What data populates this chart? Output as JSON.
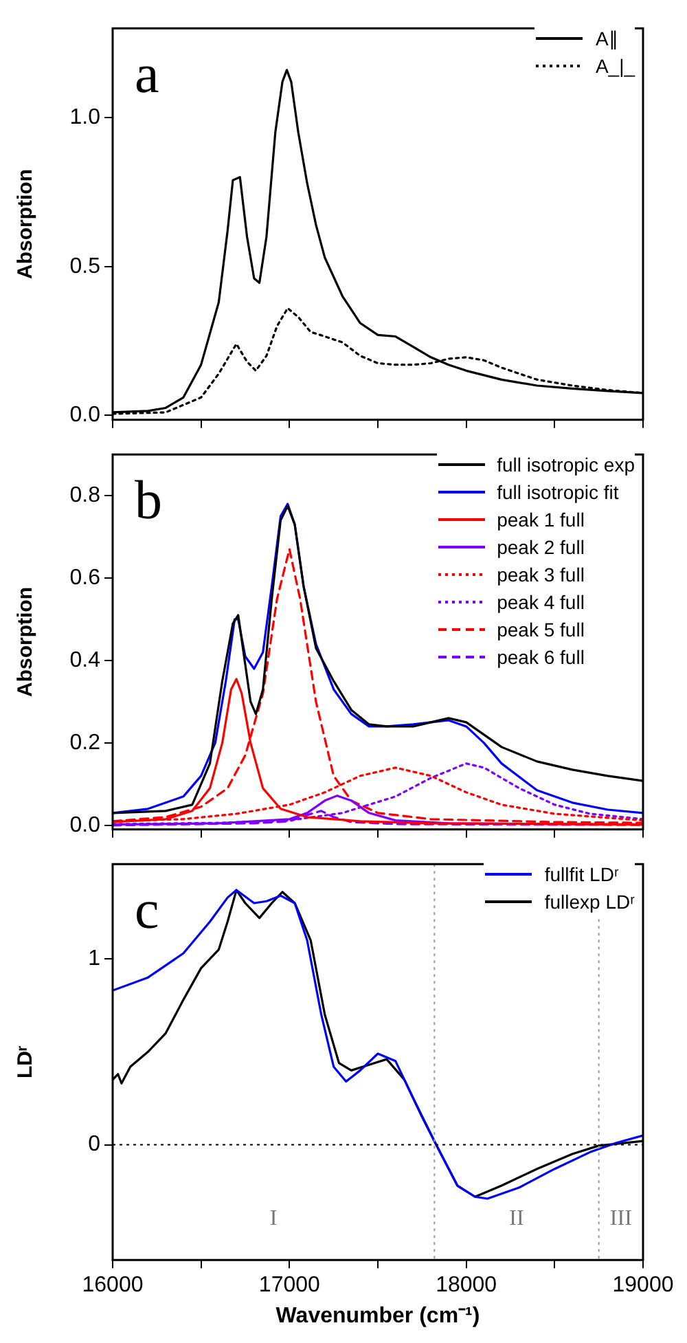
{
  "chart_data": [
    {
      "type": "line",
      "title": "a",
      "ylabel": "Absorption",
      "legend": "top right",
      "marker": "none",
      "grid": false,
      "tick_labels": "y",
      "xlim": [
        16000,
        19000
      ],
      "xticks": [
        16000,
        {
          "value": 16500,
          "label": null
        },
        17000,
        {
          "value": 17500,
          "label": null
        },
        18000,
        {
          "value": 18500,
          "label": null
        },
        19000
      ],
      "ylim": [
        -0.015,
        1.3
      ],
      "yticks": [
        {
          "value": 0,
          "label": "0.0"
        },
        {
          "value": 0.5,
          "label": "0.5"
        },
        {
          "value": 1,
          "label": "1.0"
        }
      ],
      "series": [
        {
          "name": "A∥",
          "color": "#000000",
          "line_style": "solid",
          "x": [
            16000,
            16200,
            16300,
            16400,
            16500,
            16600,
            16650,
            16680,
            16720,
            16760,
            16800,
            16830,
            16870,
            16920,
            16960,
            16985,
            17010,
            17050,
            17100,
            17150,
            17200,
            17300,
            17400,
            17500,
            17600,
            17700,
            17800,
            17900,
            18000,
            18200,
            18400,
            18600,
            18800,
            19000
          ],
          "values": [
            0.01,
            0.015,
            0.025,
            0.06,
            0.17,
            0.38,
            0.62,
            0.79,
            0.8,
            0.6,
            0.46,
            0.445,
            0.6,
            0.95,
            1.12,
            1.16,
            1.12,
            0.95,
            0.78,
            0.64,
            0.53,
            0.4,
            0.31,
            0.27,
            0.265,
            0.23,
            0.195,
            0.17,
            0.15,
            0.12,
            0.1,
            0.09,
            0.082,
            0.075
          ]
        },
        {
          "name": "A_|_",
          "color": "#000000",
          "line_style": "dotted",
          "x": [
            16000,
            16300,
            16500,
            16600,
            16700,
            16760,
            16810,
            16870,
            16930,
            16990,
            17050,
            17120,
            17200,
            17300,
            17400,
            17500,
            17600,
            17700,
            17800,
            17900,
            18000,
            18100,
            18200,
            18400,
            18600,
            18800,
            19000
          ],
          "values": [
            0.005,
            0.01,
            0.06,
            0.14,
            0.24,
            0.18,
            0.15,
            0.2,
            0.3,
            0.36,
            0.33,
            0.28,
            0.265,
            0.245,
            0.2,
            0.175,
            0.17,
            0.17,
            0.175,
            0.19,
            0.195,
            0.185,
            0.16,
            0.12,
            0.1,
            0.085,
            0.075
          ]
        }
      ]
    },
    {
      "type": "line",
      "title": "b",
      "ylabel": "Absorption",
      "legend": "top right",
      "marker": "none",
      "grid": false,
      "tick_labels": "y",
      "xlim": [
        16000,
        19000
      ],
      "xticks": [
        16000,
        {
          "value": 16500,
          "label": null
        },
        17000,
        {
          "value": 17500,
          "label": null
        },
        18000,
        {
          "value": 18500,
          "label": null
        },
        19000
      ],
      "ylim": [
        -0.01,
        0.9
      ],
      "yticks": [
        {
          "value": 0,
          "label": "0.0"
        },
        {
          "value": 0.2,
          "label": "0.2"
        },
        {
          "value": 0.4,
          "label": "0.4"
        },
        {
          "value": 0.6,
          "label": "0.6"
        },
        {
          "value": 0.8,
          "label": "0.8"
        }
      ],
      "series": [
        {
          "name": "full isotropic exp",
          "color": "#000000",
          "line_style": "solid",
          "x": [
            16000,
            16300,
            16450,
            16550,
            16620,
            16680,
            16710,
            16740,
            16780,
            16810,
            16850,
            16900,
            16950,
            16990,
            17030,
            17080,
            17150,
            17250,
            17350,
            17450,
            17550,
            17700,
            17800,
            17900,
            18000,
            18100,
            18200,
            18400,
            18600,
            18800,
            19000
          ],
          "values": [
            0.03,
            0.035,
            0.05,
            0.15,
            0.35,
            0.49,
            0.51,
            0.42,
            0.3,
            0.27,
            0.33,
            0.55,
            0.74,
            0.775,
            0.73,
            0.58,
            0.43,
            0.35,
            0.28,
            0.245,
            0.24,
            0.24,
            0.25,
            0.26,
            0.25,
            0.22,
            0.19,
            0.155,
            0.135,
            0.12,
            0.108
          ]
        },
        {
          "name": "full isotropic fit",
          "color": "#0000ff",
          "line_style": "solid",
          "x": [
            16000,
            16200,
            16400,
            16500,
            16580,
            16640,
            16690,
            16710,
            16750,
            16800,
            16850,
            16900,
            16950,
            16990,
            17030,
            17080,
            17150,
            17250,
            17350,
            17450,
            17550,
            17700,
            17800,
            17900,
            18000,
            18100,
            18200,
            18400,
            18600,
            18800,
            19000
          ],
          "values": [
            0.03,
            0.04,
            0.07,
            0.12,
            0.2,
            0.35,
            0.5,
            0.5,
            0.41,
            0.38,
            0.42,
            0.58,
            0.75,
            0.78,
            0.73,
            0.58,
            0.44,
            0.33,
            0.27,
            0.24,
            0.24,
            0.245,
            0.25,
            0.255,
            0.24,
            0.2,
            0.15,
            0.085,
            0.055,
            0.038,
            0.03
          ]
        },
        {
          "name": "peak 1 full",
          "color": "#ff0000",
          "line_style": "solid",
          "x": [
            16000,
            16300,
            16450,
            16550,
            16620,
            16670,
            16700,
            16730,
            16780,
            16850,
            16950,
            17100,
            17400,
            17800,
            19000
          ],
          "values": [
            0.008,
            0.015,
            0.035,
            0.09,
            0.2,
            0.33,
            0.355,
            0.32,
            0.2,
            0.09,
            0.04,
            0.02,
            0.01,
            0.005,
            0.002
          ]
        },
        {
          "name": "peak 2 full",
          "color": "#8000ff",
          "line_style": "solid",
          "x": [
            16000,
            16600,
            17000,
            17100,
            17200,
            17270,
            17350,
            17450,
            17600,
            17900,
            19000
          ],
          "values": [
            0.002,
            0.005,
            0.015,
            0.03,
            0.06,
            0.072,
            0.06,
            0.03,
            0.012,
            0.005,
            0.002
          ]
        },
        {
          "name": "peak 3 full",
          "color": "#ff0000",
          "line_style": "dotted",
          "x": [
            16000,
            16400,
            16700,
            17000,
            17200,
            17400,
            17600,
            17800,
            18000,
            18200,
            18500,
            19000
          ],
          "values": [
            0.01,
            0.015,
            0.028,
            0.05,
            0.08,
            0.12,
            0.14,
            0.12,
            0.08,
            0.05,
            0.028,
            0.012
          ]
        },
        {
          "name": "peak 4 full",
          "color": "#8000ff",
          "line_style": "dotted",
          "x": [
            16000,
            16600,
            17000,
            17300,
            17600,
            17800,
            18000,
            18100,
            18300,
            18500,
            18700,
            19000
          ],
          "values": [
            0.003,
            0.006,
            0.012,
            0.03,
            0.07,
            0.115,
            0.15,
            0.14,
            0.09,
            0.05,
            0.028,
            0.015
          ]
        },
        {
          "name": "peak 5 full",
          "color": "#ff0000",
          "line_style": "dashed",
          "x": [
            16000,
            16300,
            16500,
            16650,
            16750,
            16850,
            16930,
            17000,
            17060,
            17150,
            17250,
            17350,
            17500,
            17800,
            18500,
            19000
          ],
          "values": [
            0.01,
            0.02,
            0.045,
            0.09,
            0.17,
            0.32,
            0.55,
            0.67,
            0.55,
            0.3,
            0.12,
            0.06,
            0.03,
            0.015,
            0.008,
            0.006
          ]
        },
        {
          "name": "peak 6 full",
          "color": "#8000ff",
          "line_style": "dashed",
          "x": [
            16000,
            16800,
            17000,
            17100,
            17180,
            17250,
            17350,
            17600,
            19000
          ],
          "values": [
            0.0,
            0.005,
            0.01,
            0.025,
            0.035,
            0.02,
            0.008,
            0.003,
            0.001
          ]
        }
      ]
    },
    {
      "type": "line",
      "title": "c",
      "xlabel": "Wavenumber (cm⁻¹)",
      "ylabel": "LDʳ",
      "legend": "top right",
      "marker": "none",
      "grid": false,
      "xlim": [
        16000,
        19000
      ],
      "xticks": [
        16000,
        {
          "value": 16500,
          "label": null
        },
        17000,
        {
          "value": 17500,
          "label": null
        },
        18000,
        {
          "value": 18500,
          "label": null
        },
        19000
      ],
      "ylim": [
        -0.62,
        1.51
      ],
      "yticks": [
        0,
        1
      ],
      "ref_lines": [
        {
          "axis": "y",
          "value": 0,
          "color": "#000000",
          "line_style": "dotted"
        },
        {
          "axis": "x",
          "value": 17820,
          "color": "#999999",
          "line_style": "dotted"
        },
        {
          "axis": "x",
          "value": 18750,
          "color": "#999999",
          "line_style": "dotted"
        }
      ],
      "annotations": [
        "I",
        "II",
        "III"
      ],
      "series": [
        {
          "name": "fullfit LDʳ",
          "color": "#0000ff",
          "line_style": "solid",
          "x": [
            16000,
            16200,
            16400,
            16550,
            16650,
            16700,
            16800,
            16870,
            16950,
            17030,
            17100,
            17180,
            17250,
            17320,
            17400,
            17500,
            17600,
            17700,
            17830,
            17950,
            18050,
            18120,
            18300,
            18500,
            18700,
            18850,
            19000
          ],
          "values": [
            0.83,
            0.9,
            1.03,
            1.2,
            1.33,
            1.37,
            1.3,
            1.31,
            1.34,
            1.3,
            1.1,
            0.7,
            0.42,
            0.34,
            0.4,
            0.49,
            0.45,
            0.25,
            0.0,
            -0.22,
            -0.28,
            -0.29,
            -0.23,
            -0.13,
            -0.04,
            0.01,
            0.05
          ]
        },
        {
          "name": "fullexp LDʳ",
          "color": "#000000",
          "line_style": "solid",
          "x": [
            16000,
            16030,
            16050,
            16100,
            16200,
            16300,
            16400,
            16500,
            16600,
            16650,
            16700,
            16750,
            16830,
            16900,
            16960,
            17030,
            17120,
            17200,
            17280,
            17350,
            17450,
            17550,
            17650,
            17750,
            17830,
            17950,
            18050,
            18200,
            18400,
            18600,
            18750,
            18900,
            19000
          ],
          "values": [
            0.35,
            0.38,
            0.33,
            0.42,
            0.5,
            0.6,
            0.78,
            0.95,
            1.05,
            1.2,
            1.37,
            1.3,
            1.22,
            1.3,
            1.36,
            1.3,
            1.1,
            0.7,
            0.44,
            0.4,
            0.43,
            0.46,
            0.35,
            0.15,
            0.0,
            -0.22,
            -0.28,
            -0.22,
            -0.13,
            -0.05,
            -0.005,
            0.01,
            0.02
          ]
        }
      ]
    }
  ]
}
